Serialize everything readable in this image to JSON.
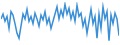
{
  "chart_data": {
    "type": "line",
    "categories": [
      null,
      null,
      null,
      null,
      null,
      null,
      null,
      null,
      null,
      null,
      null,
      null,
      null,
      null,
      null,
      null,
      null,
      null,
      null,
      null,
      null,
      null,
      null,
      null,
      null,
      null,
      null,
      null,
      null,
      null,
      null,
      null,
      null,
      null,
      null,
      null,
      null,
      null,
      null,
      null,
      null,
      null,
      null,
      null,
      null,
      null,
      null,
      null,
      null,
      null,
      null,
      null,
      null,
      null,
      null,
      null,
      null,
      null,
      null,
      null
    ],
    "values": [
      60,
      70,
      55,
      65,
      40,
      75,
      68,
      50,
      30,
      20,
      45,
      70,
      60,
      80,
      55,
      65,
      50,
      72,
      60,
      45,
      68,
      58,
      75,
      50,
      62,
      40,
      55,
      70,
      85,
      60,
      78,
      65,
      90,
      70,
      82,
      60,
      75,
      55,
      88,
      65,
      72,
      45,
      60,
      30,
      55,
      80,
      50,
      65,
      20,
      70,
      40,
      85,
      60,
      75,
      15,
      68,
      50,
      72,
      60,
      25
    ],
    "color": "#3a8fd6",
    "ylim": [
      10,
      95
    ],
    "grid": false,
    "tick_labels": false
  }
}
